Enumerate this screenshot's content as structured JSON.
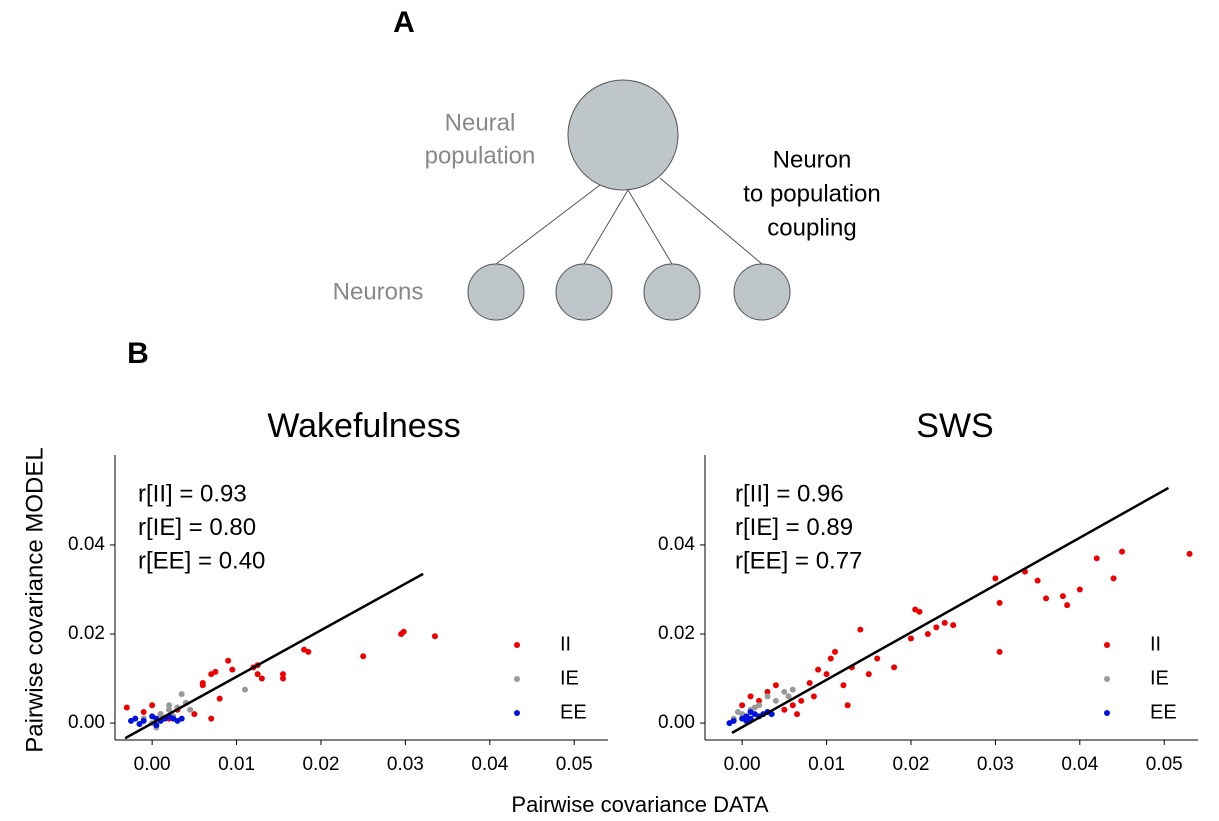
{
  "diagram": {
    "label": "A",
    "population_label": [
      "Neural",
      "population"
    ],
    "neurons_label": "Neurons",
    "coupling_label": [
      "Neuron",
      "to population",
      "coupling"
    ]
  },
  "panel_b_label": "B",
  "shared_ylabel": "Pairwise covariance MODEL",
  "shared_xlabel": "Pairwise covariance DATA",
  "chart_data": [
    {
      "type": "scatter",
      "title": "Wakefulness",
      "annotations": [
        "r[II] = 0.93",
        "r[IE] = 0.80",
        "r[EE] = 0.40"
      ],
      "xlim": [
        -0.0044,
        0.054
      ],
      "ylim": [
        -0.0038,
        0.0602
      ],
      "xticks": [
        {
          "value": 0,
          "label": "0.00"
        },
        {
          "value": 0.01,
          "label": "0.01"
        },
        {
          "value": 0.02,
          "label": "0.02"
        },
        {
          "value": 0.03,
          "label": "0.03"
        },
        {
          "value": 0.04,
          "label": "0.04"
        },
        {
          "value": 0.05,
          "label": "0.05"
        }
      ],
      "yticks": [
        {
          "value": 0,
          "label": "0.00"
        },
        {
          "value": 0.02,
          "label": "0.02"
        },
        {
          "value": 0.04,
          "label": "0.04"
        }
      ],
      "fit_line": {
        "color": "#000000",
        "x": [
          -0.0032,
          0.0321
        ],
        "y": [
          -0.0034,
          0.0335
        ]
      },
      "series": [
        {
          "name": "II",
          "color": "#ee0000",
          "x": [
            -0.003,
            -0.001,
            0.0,
            0.001,
            0.002,
            0.003,
            0.004,
            0.005,
            0.006,
            0.006,
            0.007,
            0.0075,
            0.008,
            0.009,
            0.0095,
            0.012,
            0.0125,
            0.013,
            0.0125,
            0.0155,
            0.0155,
            0.018,
            0.0185,
            0.025,
            0.0295,
            0.0298,
            0.0335,
            0.007
          ],
          "values": [
            0.0035,
            0.0025,
            0.004,
            0.002,
            0.001,
            0.003,
            0.0045,
            0.002,
            0.009,
            0.0085,
            0.011,
            0.0115,
            0.0055,
            0.014,
            0.012,
            0.0125,
            0.013,
            0.01,
            0.011,
            0.011,
            0.01,
            0.0165,
            0.016,
            0.015,
            0.02,
            0.0205,
            0.0195,
            0.001
          ]
        },
        {
          "name": "IE",
          "color": "#999999",
          "x": [
            0.0,
            0.001,
            0.002,
            0.0035,
            0.004,
            0.003,
            0.0045,
            0.011,
            0.0005,
            0.0025,
            -0.001,
            0.002
          ],
          "values": [
            0.0,
            0.002,
            0.003,
            0.0065,
            0.0045,
            0.0035,
            0.003,
            0.0075,
            -0.001,
            0.0015,
            0.001,
            0.004
          ]
        },
        {
          "name": "EE",
          "color": "#0011dd",
          "x": [
            -0.0025,
            -0.002,
            -0.001,
            0.0,
            0.0005,
            0.001,
            0.0015,
            0.002,
            0.0025,
            0.003,
            0.0005,
            -0.0015,
            0.0035
          ],
          "values": [
            0.0005,
            0.001,
            0.0005,
            0.0015,
            0.001,
            0.0005,
            0.001,
            0.0015,
            0.001,
            0.0005,
            -0.0005,
            -0.0002,
            0.001
          ]
        }
      ]
    },
    {
      "type": "scatter",
      "title": "SWS",
      "annotations": [
        "r[II] = 0.96",
        "r[IE] = 0.89",
        "r[EE] = 0.77"
      ],
      "xlim": [
        -0.0044,
        0.054
      ],
      "ylim": [
        -0.0038,
        0.0602
      ],
      "xticks": [
        {
          "value": 0,
          "label": "0.00"
        },
        {
          "value": 0.01,
          "label": "0.01"
        },
        {
          "value": 0.02,
          "label": "0.02"
        },
        {
          "value": 0.03,
          "label": "0.03"
        },
        {
          "value": 0.04,
          "label": "0.04"
        },
        {
          "value": 0.05,
          "label": "0.05"
        }
      ],
      "yticks": [
        {
          "value": 0,
          "label": "0.00"
        },
        {
          "value": 0.02,
          "label": "0.02"
        },
        {
          "value": 0.04,
          "label": "0.04"
        }
      ],
      "fit_line": {
        "color": "#000000",
        "x": [
          -0.0012,
          0.0505
        ],
        "y": [
          -0.0022,
          0.0528
        ]
      },
      "series": [
        {
          "name": "II",
          "color": "#ee0000",
          "x": [
            0.0,
            0.001,
            0.002,
            0.003,
            0.004,
            0.005,
            0.006,
            0.007,
            0.008,
            0.009,
            0.01,
            0.0105,
            0.011,
            0.012,
            0.0125,
            0.013,
            0.014,
            0.015,
            0.016,
            0.018,
            0.02,
            0.0205,
            0.021,
            0.022,
            0.023,
            0.024,
            0.025,
            0.03,
            0.0305,
            0.0305,
            0.0335,
            0.035,
            0.036,
            0.038,
            0.0385,
            0.04,
            0.042,
            0.044,
            0.045,
            0.053,
            0.0085,
            0.0065
          ],
          "values": [
            0.004,
            0.006,
            0.005,
            0.007,
            0.0085,
            0.003,
            0.004,
            0.005,
            0.009,
            0.012,
            0.011,
            0.0145,
            0.016,
            0.0085,
            0.004,
            0.0125,
            0.021,
            0.011,
            0.0145,
            0.0125,
            0.019,
            0.0255,
            0.025,
            0.02,
            0.0215,
            0.0225,
            0.022,
            0.0325,
            0.027,
            0.016,
            0.034,
            0.032,
            0.028,
            0.0285,
            0.0265,
            0.03,
            0.037,
            0.0325,
            0.0385,
            0.038,
            0.006,
            0.002
          ]
        },
        {
          "name": "IE",
          "color": "#999999",
          "x": [
            -0.001,
            0.0,
            0.001,
            0.002,
            0.003,
            0.004,
            0.005,
            0.0055,
            0.006,
            0.0015,
            -0.0005
          ],
          "values": [
            0.001,
            0.002,
            0.003,
            0.004,
            0.006,
            0.005,
            0.007,
            0.006,
            0.0075,
            0.0035,
            0.0025
          ]
        },
        {
          "name": "EE",
          "color": "#0011dd",
          "x": [
            -0.0015,
            -0.001,
            0.0,
            0.0005,
            0.001,
            0.0015,
            0.002,
            0.0025,
            0.003,
            0.0035,
            0.001,
            0.0005
          ],
          "values": [
            0.0,
            0.0005,
            0.001,
            0.0015,
            0.001,
            0.002,
            0.0015,
            0.002,
            0.0025,
            0.002,
            0.0025,
            0.0005
          ]
        }
      ]
    }
  ]
}
